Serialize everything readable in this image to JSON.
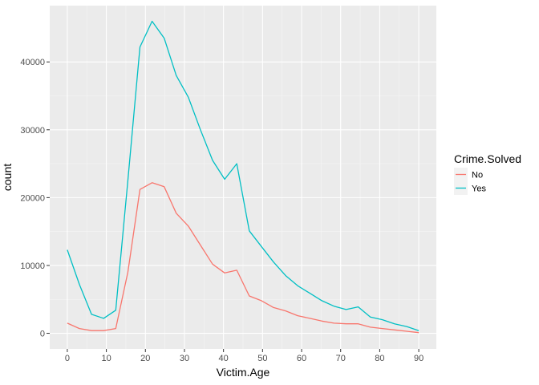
{
  "chart_data": {
    "type": "line",
    "title": "",
    "xlabel": "Victim.Age",
    "ylabel": "count",
    "xlim": [
      -4.5,
      94.5
    ],
    "ylim": [
      -2300,
      48300
    ],
    "x_ticks": [
      0,
      10,
      20,
      30,
      40,
      50,
      60,
      70,
      80,
      90
    ],
    "x_tick_labels": [
      "0",
      "10",
      "20",
      "30",
      "40",
      "50",
      "60",
      "70",
      "80",
      "90"
    ],
    "y_ticks": [
      0,
      10000,
      20000,
      30000,
      40000
    ],
    "y_tick_labels": [
      "0",
      "10000",
      "20000",
      "30000",
      "40000"
    ],
    "grid": true,
    "legend": {
      "title": "Crime.Solved",
      "position": "right"
    },
    "series": [
      {
        "name": "No",
        "color": "#f8766d",
        "x": [
          0,
          3.1,
          6.2,
          9.3,
          12.4,
          15.5,
          18.6,
          21.7,
          24.8,
          27.9,
          31,
          34.1,
          37.2,
          40.3,
          43.4,
          46.6,
          49.7,
          52.8,
          55.9,
          59,
          62.1,
          65.2,
          68.3,
          71.4,
          74.5,
          77.6,
          80.7,
          83.8,
          86.9,
          90
        ],
        "values": [
          1500,
          700,
          400,
          400,
          700,
          9000,
          21200,
          22200,
          21600,
          17700,
          15800,
          13000,
          10200,
          8900,
          9300,
          5500,
          4800,
          3800,
          3300,
          2600,
          2200,
          1800,
          1500,
          1400,
          1400,
          900,
          700,
          500,
          300,
          100
        ]
      },
      {
        "name": "Yes",
        "color": "#00bfc4",
        "x": [
          0,
          3.1,
          6.2,
          9.3,
          12.4,
          15.5,
          18.6,
          21.7,
          24.8,
          27.9,
          31,
          34.1,
          37.2,
          40.3,
          43.4,
          46.6,
          49.7,
          52.8,
          55.9,
          59,
          62.1,
          65.2,
          68.3,
          71.4,
          74.5,
          77.6,
          80.7,
          83.8,
          86.9,
          90
        ],
        "values": [
          12300,
          7200,
          2800,
          2200,
          3400,
          22500,
          42200,
          46000,
          43500,
          38000,
          34800,
          30000,
          25500,
          22700,
          25000,
          15100,
          12800,
          10500,
          8500,
          7000,
          5900,
          4800,
          4000,
          3500,
          3900,
          2400,
          2000,
          1400,
          1000,
          400
        ]
      }
    ]
  }
}
